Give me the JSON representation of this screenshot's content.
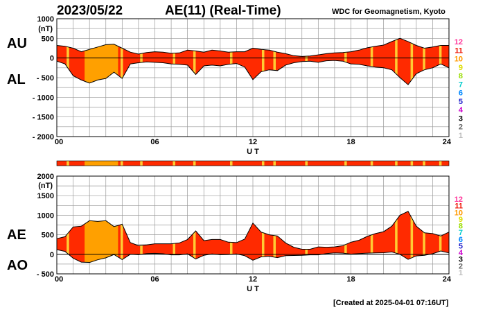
{
  "header": {
    "date": "2023/05/22",
    "title": "AE(11) (Real-Time)",
    "institution": "WDC for Geomagnetism, Kyoto"
  },
  "footer": {
    "created": "[Created at 2025-04-01 07:16UT]"
  },
  "colors": {
    "fill_default": "#ff2a00",
    "fill_low": "#ffa000",
    "fill_highlight": "#ffcc33",
    "grid": "#999999",
    "line": "#000000"
  },
  "legend": {
    "levels": [
      {
        "label": "12",
        "color": "#ff3399"
      },
      {
        "label": "11",
        "color": "#ee1100"
      },
      {
        "label": "10",
        "color": "#ff9900"
      },
      {
        "label": "9",
        "color": "#dddd00"
      },
      {
        "label": "8",
        "color": "#99dd00"
      },
      {
        "label": "7",
        "color": "#00cccc"
      },
      {
        "label": "6",
        "color": "#0088ff"
      },
      {
        "label": "5",
        "color": "#2222cc"
      },
      {
        "label": "4",
        "color": "#cc00cc"
      },
      {
        "label": "3",
        "color": "#000000"
      },
      {
        "label": "2",
        "color": "#666666"
      },
      {
        "label": "1",
        "color": "#bbbbbb"
      }
    ]
  },
  "chart_data": [
    {
      "type": "area",
      "name": "AU/AL",
      "upper_label": "AU",
      "lower_label": "AL",
      "unit": "(nT)",
      "xlabel": "U T",
      "xlim": [
        0,
        24
      ],
      "ylim": [
        -2000,
        1000
      ],
      "x_ticks": [
        "00",
        "06",
        "12",
        "18",
        "24"
      ],
      "y_ticks": [
        "1000",
        "500",
        "0",
        "- 500",
        "- 1000",
        "- 1500",
        "- 2000"
      ],
      "x": [
        0,
        0.5,
        1,
        1.5,
        2,
        2.5,
        3,
        3.5,
        4,
        4.5,
        5,
        5.5,
        6,
        6.5,
        7,
        7.5,
        8,
        8.5,
        9,
        9.5,
        10,
        10.5,
        11,
        11.5,
        12,
        12.5,
        13,
        13.5,
        14,
        14.5,
        15,
        15.5,
        16,
        16.5,
        17,
        17.5,
        18,
        18.5,
        19,
        19.5,
        20,
        20.5,
        21,
        21.5,
        22,
        22.5,
        23,
        23.5,
        24
      ],
      "series": [
        {
          "name": "AU",
          "values": [
            320,
            300,
            250,
            160,
            220,
            280,
            340,
            350,
            250,
            150,
            100,
            140,
            160,
            150,
            120,
            130,
            200,
            180,
            150,
            200,
            180,
            150,
            160,
            160,
            250,
            220,
            200,
            150,
            110,
            60,
            40,
            50,
            80,
            110,
            130,
            140,
            160,
            200,
            260,
            300,
            330,
            420,
            500,
            420,
            320,
            250,
            280,
            320,
            320
          ]
        },
        {
          "name": "AL",
          "values": [
            -80,
            -150,
            -450,
            -560,
            -640,
            -560,
            -520,
            -360,
            -520,
            -150,
            -120,
            -100,
            -110,
            -120,
            -150,
            -160,
            -180,
            -420,
            -200,
            -180,
            -200,
            -160,
            -140,
            -230,
            -550,
            -350,
            -300,
            -320,
            -180,
            -120,
            -90,
            -80,
            -110,
            -70,
            -60,
            -80,
            -150,
            -160,
            -200,
            -230,
            -250,
            -300,
            -500,
            -680,
            -400,
            -300,
            -250,
            -150,
            -250
          ]
        }
      ]
    },
    {
      "type": "area",
      "name": "AE/AO",
      "upper_label": "AE",
      "lower_label": "AO",
      "unit": "(nT)",
      "xlabel": "U T",
      "xlim": [
        0,
        24
      ],
      "ylim": [
        -500,
        2000
      ],
      "x_ticks": [
        "00",
        "06",
        "12",
        "18",
        "24"
      ],
      "y_ticks": [
        "2000",
        "1500",
        "1000",
        "500",
        "0",
        "- 500"
      ],
      "x": [
        0,
        0.5,
        1,
        1.5,
        2,
        2.5,
        3,
        3.5,
        4,
        4.5,
        5,
        5.5,
        6,
        6.5,
        7,
        7.5,
        8,
        8.5,
        9,
        9.5,
        10,
        10.5,
        11,
        11.5,
        12,
        12.5,
        13,
        13.5,
        14,
        14.5,
        15,
        15.5,
        16,
        16.5,
        17,
        17.5,
        18,
        18.5,
        19,
        19.5,
        20,
        20.5,
        21,
        21.5,
        22,
        22.5,
        23,
        23.5,
        24
      ],
      "series": [
        {
          "name": "AE",
          "values": [
            400,
            450,
            700,
            720,
            860,
            840,
            860,
            710,
            770,
            300,
            220,
            240,
            270,
            270,
            270,
            290,
            380,
            600,
            350,
            380,
            380,
            310,
            300,
            390,
            800,
            570,
            500,
            470,
            290,
            180,
            130,
            130,
            190,
            180,
            190,
            220,
            310,
            360,
            460,
            530,
            580,
            720,
            1000,
            1100,
            720,
            550,
            530,
            470,
            570
          ]
        },
        {
          "name": "AO",
          "values": [
            120,
            75,
            -100,
            -200,
            -210,
            -140,
            -90,
            -5,
            -135,
            0,
            -10,
            20,
            25,
            15,
            -15,
            -15,
            10,
            -120,
            -25,
            10,
            -10,
            -5,
            10,
            -35,
            -150,
            -65,
            -50,
            -85,
            -35,
            -30,
            -25,
            -15,
            -15,
            20,
            35,
            30,
            5,
            20,
            30,
            35,
            40,
            60,
            0,
            -130,
            -40,
            -25,
            15,
            85,
            35
          ]
        }
      ]
    },
    {
      "type": "heatmap",
      "name": "activity-bar",
      "xlim": [
        0,
        24
      ]
    }
  ]
}
